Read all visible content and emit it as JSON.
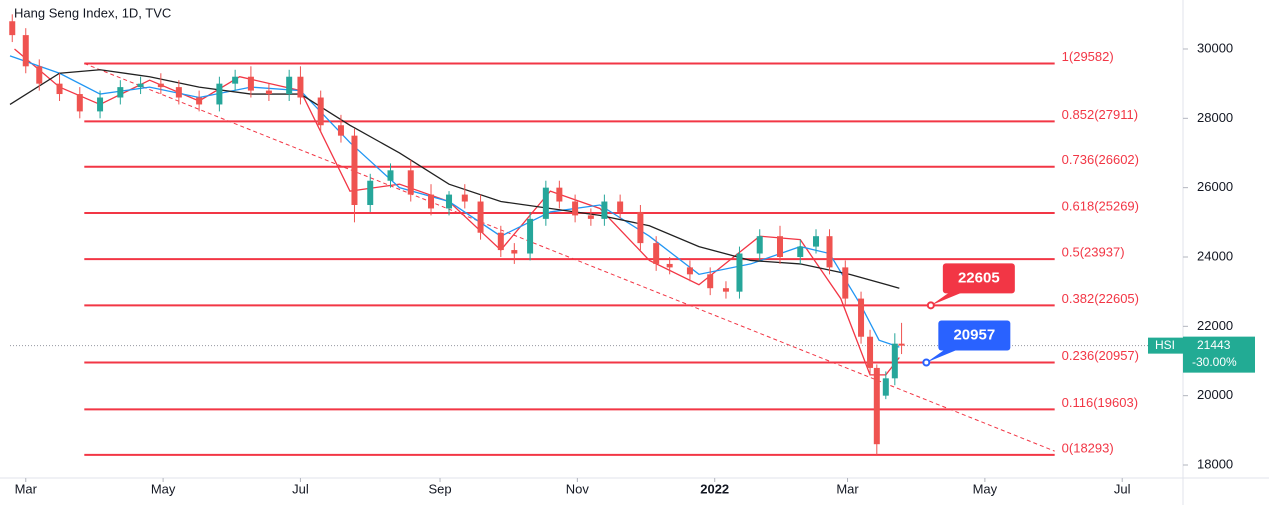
{
  "chart_data": {
    "type": "candlestick",
    "title": "Hang Seng Index, 1D, TVC",
    "xlim": [
      -7,
      514
    ],
    "ylim": [
      17625,
      31413
    ],
    "yticks": [
      18000,
      20000,
      22000,
      24000,
      26000,
      28000,
      30000
    ],
    "xticks": [
      {
        "value": 0,
        "label": "Mar"
      },
      {
        "value": 61,
        "label": "May"
      },
      {
        "value": 122,
        "label": "Jul"
      },
      {
        "value": 184,
        "label": "Sep"
      },
      {
        "value": 245,
        "label": "Nov"
      },
      {
        "value": 306,
        "label": "2022"
      },
      {
        "value": 365,
        "label": "Mar"
      },
      {
        "value": 426,
        "label": "May"
      },
      {
        "value": 487,
        "label": "Jul"
      }
    ],
    "up_color": "#26a69a",
    "down_color": "#ef5350",
    "candles": {
      "x": [
        -6,
        0,
        6,
        15,
        24,
        33,
        42,
        51,
        60,
        68,
        77,
        86,
        93,
        100,
        108,
        117,
        122,
        131,
        140,
        146,
        153,
        162,
        171,
        180,
        188,
        195,
        202,
        211,
        217,
        224,
        231,
        237,
        244,
        251,
        257,
        264,
        273,
        280,
        286,
        295,
        304,
        311,
        317,
        326,
        335,
        344,
        351,
        357,
        364,
        371,
        375,
        378,
        382,
        386,
        389
      ],
      "open": [
        30800,
        30400,
        29500,
        29000,
        28700,
        28200,
        28600,
        28900,
        29000,
        28900,
        28600,
        28400,
        29000,
        29200,
        28800,
        28700,
        29200,
        28600,
        27800,
        27500,
        25500,
        26200,
        26500,
        25800,
        25400,
        25800,
        25600,
        24700,
        24200,
        24100,
        25100,
        26000,
        25600,
        25200,
        25100,
        25600,
        25300,
        24400,
        23800,
        23700,
        23500,
        23100,
        23000,
        24100,
        24600,
        24000,
        24300,
        24600,
        23700,
        22800,
        21700,
        20800,
        20000,
        20500,
        21500
      ],
      "high": [
        31000,
        30600,
        29700,
        29300,
        28900,
        28800,
        29100,
        29200,
        29300,
        29100,
        28800,
        29200,
        29400,
        29500,
        29000,
        29400,
        29500,
        28800,
        28100,
        27700,
        26400,
        26700,
        26800,
        26100,
        25900,
        26100,
        25800,
        24900,
        24400,
        25300,
        26200,
        26200,
        25800,
        25400,
        25800,
        25800,
        25500,
        24600,
        24000,
        23900,
        23700,
        23300,
        24300,
        24800,
        24900,
        24500,
        24800,
        24800,
        23900,
        23000,
        21900,
        20900,
        20700,
        21800,
        22100
      ],
      "low": [
        30200,
        29300,
        28800,
        28500,
        28000,
        28000,
        28400,
        28700,
        28700,
        28400,
        28200,
        28200,
        28800,
        28600,
        28500,
        28500,
        28400,
        27600,
        27300,
        25000,
        25300,
        26000,
        25600,
        25200,
        25200,
        25400,
        24500,
        24000,
        23800,
        23900,
        24900,
        25400,
        25000,
        24900,
        24900,
        25100,
        24200,
        23600,
        23500,
        23300,
        22900,
        22800,
        22800,
        23900,
        23800,
        23800,
        24100,
        23500,
        22600,
        21500,
        20600,
        18293,
        19900,
        20300,
        21200
      ],
      "close": [
        30400,
        29500,
        29000,
        28700,
        28200,
        28600,
        28900,
        29000,
        28900,
        28600,
        28400,
        29000,
        29200,
        28800,
        28700,
        29200,
        28600,
        27800,
        27500,
        25500,
        26200,
        26500,
        25800,
        25400,
        25800,
        25600,
        24700,
        24200,
        24100,
        25100,
        26000,
        25600,
        25200,
        25100,
        25600,
        25300,
        24400,
        23800,
        23700,
        23500,
        23100,
        23000,
        24100,
        24600,
        24000,
        24300,
        24600,
        23700,
        22800,
        21700,
        20800,
        18600,
        20500,
        21500,
        21443
      ]
    },
    "moving_averages": [
      {
        "color": "#f23645",
        "x": [
          -5,
          15,
          33,
          55,
          77,
          95,
          122,
          144,
          166,
          188,
          211,
          233,
          255,
          277,
          299,
          326,
          344,
          362,
          375,
          382,
          388
        ],
        "values": [
          30000,
          28900,
          28400,
          29100,
          28500,
          29200,
          28800,
          25900,
          26100,
          25600,
          24200,
          25900,
          25400,
          23900,
          23200,
          24600,
          24500,
          22800,
          20600,
          20600,
          21100
        ]
      },
      {
        "color": "#2196f3",
        "x": [
          -7,
          15,
          33,
          55,
          77,
          100,
          122,
          144,
          166,
          188,
          211,
          233,
          255,
          277,
          299,
          322,
          344,
          357,
          371,
          379,
          388
        ],
        "values": [
          29800,
          29300,
          28700,
          28900,
          28600,
          28900,
          28800,
          27300,
          26000,
          25600,
          24600,
          25300,
          25500,
          24600,
          23500,
          23800,
          24300,
          24100,
          22600,
          21600,
          21400
        ]
      },
      {
        "color": "#212121",
        "x": [
          -7,
          15,
          33,
          55,
          77,
          100,
          122,
          144,
          166,
          188,
          211,
          233,
          255,
          277,
          299,
          322,
          344,
          366,
          388
        ],
        "values": [
          28400,
          29300,
          29400,
          29200,
          28900,
          28700,
          28700,
          27800,
          27000,
          26100,
          25600,
          25400,
          25200,
          24900,
          24300,
          23900,
          23800,
          23500,
          23100
        ]
      }
    ],
    "fib_levels": {
      "x": [
        26,
        457
      ],
      "color": "#f23645",
      "levels": [
        {
          "value": 29582,
          "label": "1(29582)"
        },
        {
          "value": 27911,
          "label": "0.852(27911)"
        },
        {
          "value": 26602,
          "label": "0.736(26602)"
        },
        {
          "value": 25269,
          "label": "0.618(25269)"
        },
        {
          "value": 23937,
          "label": "0.5(23937)"
        },
        {
          "value": 22605,
          "label": "0.382(22605)"
        },
        {
          "value": 20957,
          "label": "0.236(20957)"
        },
        {
          "value": 19603,
          "label": "0.116(19603)"
        },
        {
          "value": 18293,
          "label": "0(18293)"
        }
      ]
    },
    "trend_line": {
      "x": [
        26,
        457
      ],
      "y": [
        29582,
        18400
      ],
      "color": "#f23645"
    },
    "callouts": [
      {
        "value": 22605,
        "color": "#f23645",
        "x": 402
      },
      {
        "value": 20957,
        "color": "#2962ff",
        "x": 400
      }
    ],
    "last_price": {
      "symbol": "HSI",
      "value": 21443,
      "change": "-30.00%",
      "color": "#22ab94"
    }
  }
}
